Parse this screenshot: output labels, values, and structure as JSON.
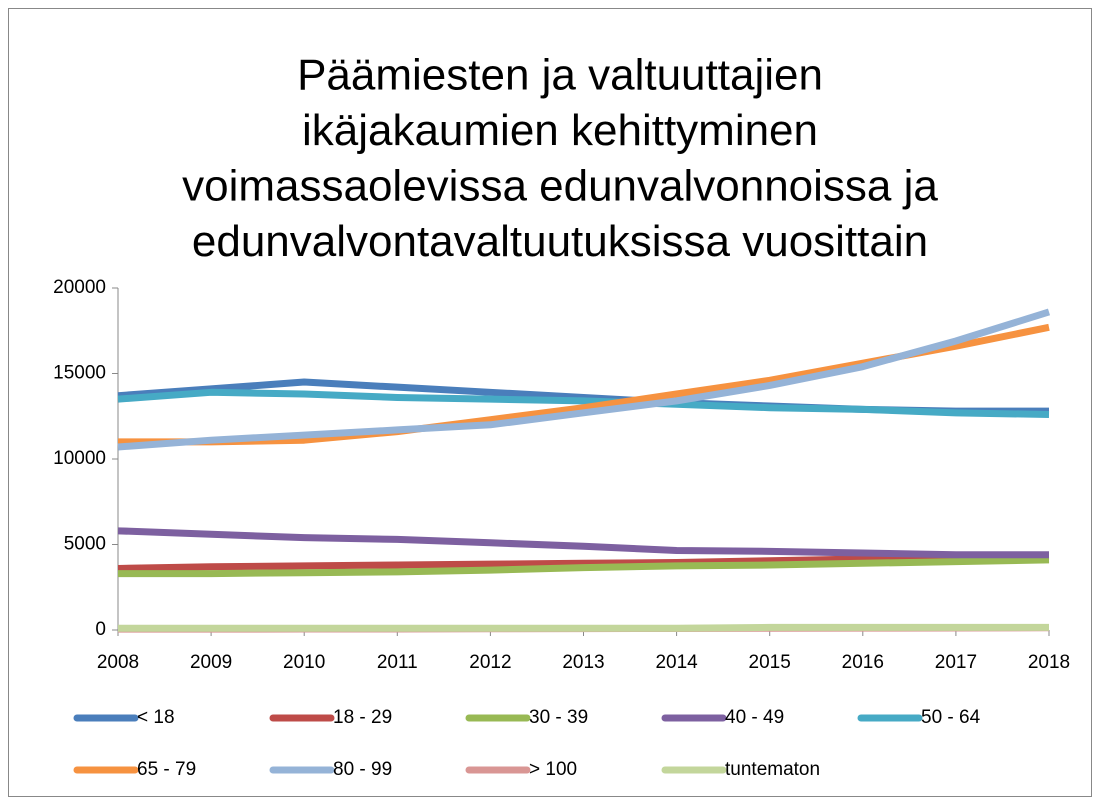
{
  "chart_data": {
    "type": "line",
    "title": [
      "Päämiesten ja valtuuttajien",
      "ikäjakaumien kehittyminen",
      "voimassaolevissa edunvalvonnoissa ja",
      "edunvalvontavaltuutuksissa vuosittain"
    ],
    "categories": [
      "2008",
      "2009",
      "2010",
      "2011",
      "2012",
      "2013",
      "2014",
      "2015",
      "2016",
      "2017",
      "2018"
    ],
    "series": [
      {
        "name": "< 18",
        "color": "#4a7ebb",
        "values": [
          13700,
          14100,
          14500,
          14200,
          13900,
          13600,
          13300,
          13100,
          12900,
          12800,
          12800
        ]
      },
      {
        "name": "18 - 29",
        "color": "#be4b48",
        "values": [
          3600,
          3700,
          3750,
          3800,
          3850,
          3900,
          3950,
          4050,
          4150,
          4200,
          4300
        ]
      },
      {
        "name": "30 - 39",
        "color": "#98b954",
        "values": [
          3300,
          3300,
          3350,
          3400,
          3500,
          3650,
          3750,
          3800,
          3900,
          4000,
          4100
        ]
      },
      {
        "name": "40 - 49",
        "color": "#7d60a0",
        "values": [
          5800,
          5600,
          5400,
          5300,
          5100,
          4900,
          4650,
          4600,
          4500,
          4400,
          4400
        ]
      },
      {
        "name": "50 - 64",
        "color": "#46aac5",
        "values": [
          13500,
          13900,
          13800,
          13600,
          13500,
          13400,
          13200,
          13000,
          12900,
          12700,
          12600
        ]
      },
      {
        "name": "65 - 79",
        "color": "#f69240",
        "values": [
          11000,
          11000,
          11100,
          11600,
          12300,
          13000,
          13800,
          14600,
          15600,
          16600,
          17700
        ]
      },
      {
        "name": "80 - 99",
        "color": "#95b3d7",
        "values": [
          10700,
          11100,
          11400,
          11700,
          12000,
          12700,
          13400,
          14300,
          15400,
          16900,
          18600
        ]
      },
      {
        "name": "> 100",
        "color": "#d99694",
        "values": [
          50,
          50,
          60,
          60,
          70,
          80,
          90,
          100,
          110,
          120,
          130
        ]
      },
      {
        "name": "tuntematon",
        "color": "#c3d69b",
        "values": [
          100,
          100,
          100,
          100,
          100,
          100,
          100,
          150,
          150,
          150,
          150
        ]
      }
    ],
    "ylim": [
      0,
      20000
    ],
    "yticks": [
      0,
      5000,
      10000,
      15000,
      20000
    ]
  }
}
